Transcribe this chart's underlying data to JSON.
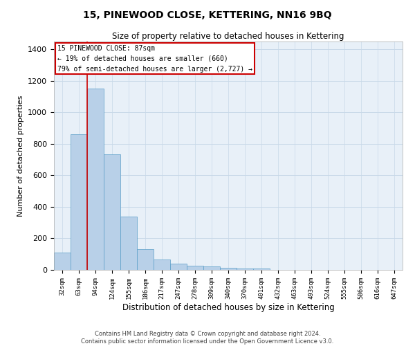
{
  "title": "15, PINEWOOD CLOSE, KETTERING, NN16 9BQ",
  "subtitle": "Size of property relative to detached houses in Kettering",
  "xlabel": "Distribution of detached houses by size in Kettering",
  "ylabel": "Number of detached properties",
  "categories": [
    "32sqm",
    "63sqm",
    "94sqm",
    "124sqm",
    "155sqm",
    "186sqm",
    "217sqm",
    "247sqm",
    "278sqm",
    "309sqm",
    "340sqm",
    "370sqm",
    "401sqm",
    "432sqm",
    "463sqm",
    "493sqm",
    "524sqm",
    "555sqm",
    "586sqm",
    "616sqm",
    "647sqm"
  ],
  "values": [
    110,
    860,
    1150,
    735,
    340,
    130,
    65,
    40,
    25,
    20,
    15,
    10,
    10,
    0,
    0,
    0,
    0,
    0,
    0,
    0,
    0
  ],
  "bar_color": "#b8d0e8",
  "bar_edge_color": "#5a9ec8",
  "grid_color": "#c8d8e8",
  "background_color": "#e8f0f8",
  "annotation_box_text": "15 PINEWOOD CLOSE: 87sqm\n← 19% of detached houses are smaller (660)\n79% of semi-detached houses are larger (2,727) →",
  "annotation_box_color": "#cc0000",
  "property_line_x": 2,
  "ylim": [
    0,
    1450
  ],
  "yticks": [
    0,
    200,
    400,
    600,
    800,
    1000,
    1200,
    1400
  ],
  "footer_line1": "Contains HM Land Registry data © Crown copyright and database right 2024.",
  "footer_line2": "Contains public sector information licensed under the Open Government Licence v3.0."
}
